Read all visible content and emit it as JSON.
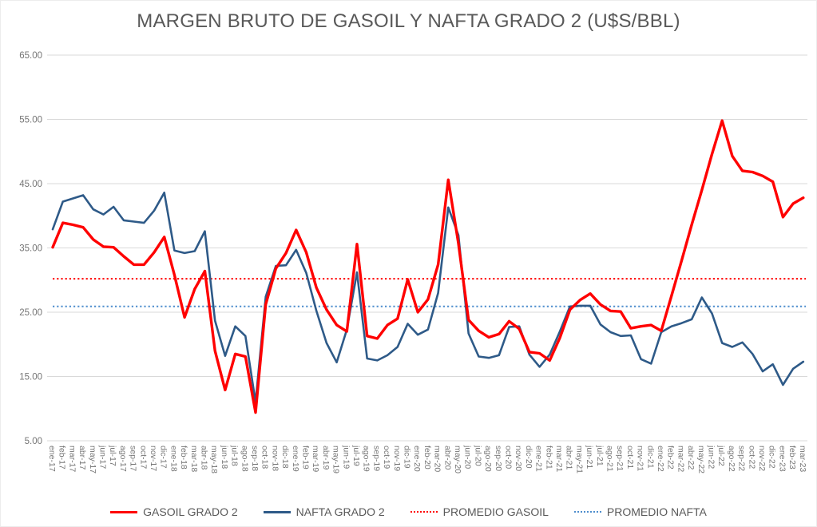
{
  "chart_data": {
    "type": "line",
    "title": "MARGEN BRUTO DE GASOIL Y NAFTA GRADO 2 (U$S/BBL)",
    "categories": [
      "ene-17",
      "feb-17",
      "mar-17",
      "abr-17",
      "may-17",
      "jun-17",
      "jul-17",
      "ago-17",
      "sep-17",
      "oct-17",
      "nov-17",
      "dic-17",
      "ene-18",
      "feb-18",
      "mar-18",
      "abr-18",
      "may-18",
      "jun-18",
      "jul-18",
      "ago-18",
      "sep-18",
      "oct-18",
      "nov-18",
      "dic-18",
      "ene-19",
      "feb-19",
      "mar-19",
      "abr-19",
      "may-19",
      "jun-19",
      "jul-19",
      "ago-19",
      "sep-19",
      "oct-19",
      "nov-19",
      "dic-19",
      "ene-20",
      "feb-20",
      "mar-20",
      "abr-20",
      "may-20",
      "jun-20",
      "jul-20",
      "ago-20",
      "sep-20",
      "oct-20",
      "nov-20",
      "dic-20",
      "ene-21",
      "feb-21",
      "mar-21",
      "abr-21",
      "may-21",
      "jun-21",
      "jul-21",
      "ago-21",
      "sep-21",
      "oct-21",
      "nov-21",
      "dic-21",
      "ene-22",
      "feb-22",
      "mar-22",
      "abr-22",
      "may-22",
      "jun-22",
      "jul-22",
      "ago-22",
      "sep-22",
      "oct-22",
      "nov-22",
      "dic-22",
      "ene-23",
      "feb-23",
      "mar-23"
    ],
    "series": [
      {
        "name": "GASOIL GRADO 2",
        "style": "solid",
        "color": "#ff0000",
        "values": [
          35.1,
          38.9,
          38.6,
          38.2,
          36.3,
          35.2,
          35.1,
          33.7,
          32.4,
          32.4,
          34.3,
          36.7,
          30.8,
          24.2,
          28.6,
          31.4,
          19.0,
          12.9,
          18.5,
          18.1,
          9.4,
          26.2,
          31.8,
          34.2,
          37.8,
          34.3,
          28.8,
          25.4,
          23.0,
          22.0,
          35.6,
          21.3,
          20.9,
          23.0,
          24.0,
          30.1,
          25.0,
          27.0,
          32.4,
          45.6,
          35.7,
          23.8,
          22.1,
          21.1,
          21.6,
          23.6,
          22.4,
          18.8,
          18.6,
          17.5,
          21.0,
          25.4,
          26.9,
          27.9,
          26.2,
          25.2,
          25.1,
          22.5,
          22.8,
          23.0,
          22.1,
          27.5,
          33.0,
          38.6,
          44.0,
          49.6,
          54.8,
          49.3,
          47.0,
          46.8,
          46.2,
          45.3,
          39.8,
          41.9,
          42.8
        ]
      },
      {
        "name": "NAFTA GRADO 2",
        "style": "solid",
        "color": "#2e5a88",
        "values": [
          37.9,
          42.2,
          42.7,
          43.2,
          41.0,
          40.2,
          41.4,
          39.3,
          39.1,
          38.9,
          40.8,
          43.6,
          34.6,
          34.2,
          34.5,
          37.6,
          23.7,
          18.2,
          22.8,
          21.3,
          11.0,
          27.4,
          32.2,
          32.3,
          34.7,
          31.1,
          25.2,
          20.2,
          17.2,
          22.3,
          31.2,
          17.8,
          17.5,
          18.3,
          19.6,
          23.2,
          21.5,
          22.3,
          28.0,
          41.3,
          37.0,
          21.7,
          18.1,
          17.9,
          18.3,
          22.7,
          22.8,
          18.4,
          16.5,
          18.4,
          22.0,
          25.9,
          26.0,
          26.0,
          23.1,
          21.9,
          21.3,
          21.4,
          17.7,
          17.0,
          21.9,
          22.8,
          23.3,
          23.9,
          27.3,
          24.8,
          20.2,
          19.6,
          20.3,
          18.5,
          15.8,
          16.9,
          13.7,
          16.2,
          17.3
        ]
      },
      {
        "name": "PROMEDIO GASOIL",
        "style": "dotted",
        "color": "#ff0000",
        "value": 30.2
      },
      {
        "name": "PROMEDIO NAFTA",
        "style": "dotted",
        "color": "#4e8ecd",
        "value": 25.9
      }
    ],
    "ylim": [
      5,
      65
    ],
    "ytick_step": 10,
    "ytick_labels": [
      "65.00",
      "55.00",
      "45.00",
      "35.00",
      "25.00",
      "15.00",
      "5.00"
    ],
    "grid": "horizontal",
    "legend_position": "bottom",
    "colors": {
      "grid": "#d9d9d9",
      "tick_text": "#757575",
      "title_text": "#595959"
    }
  }
}
